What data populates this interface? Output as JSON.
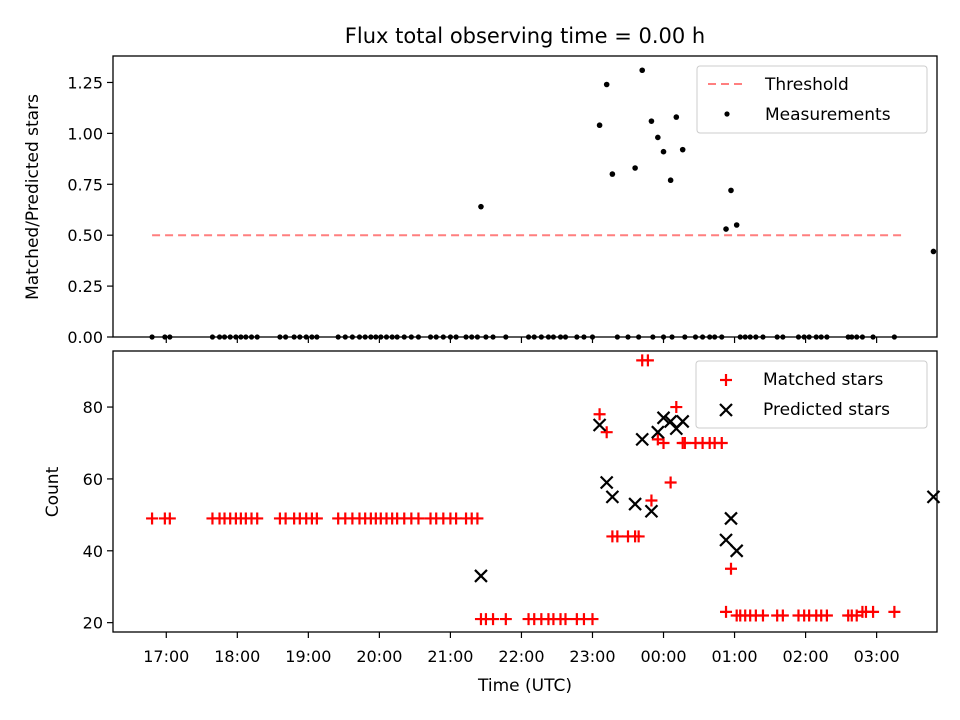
{
  "title": "Flux total observing time = 0.00 h",
  "colors": {
    "threshold": "#ff7f7f",
    "matched": "#ff0000",
    "predicted": "#000000",
    "measurements": "#000000"
  },
  "chart_data": [
    {
      "type": "scatter",
      "panel": "top",
      "ylabel": "Matched/Predicted stars",
      "ylim": [
        0,
        1.38
      ],
      "yticks": [
        0.0,
        0.25,
        0.5,
        0.75,
        1.0,
        1.25
      ],
      "ytick_labels": [
        "0.00",
        "0.25",
        "0.50",
        "0.75",
        "1.00",
        "1.25"
      ],
      "xlim": [
        16.25,
        27.85
      ],
      "legend": {
        "position": "top-right",
        "threshold_label": "Threshold",
        "measurements_label": "Measurements"
      },
      "threshold": {
        "x": [
          16.8,
          27.35
        ],
        "y": 0.5
      },
      "measurements": {
        "x": [
          21.43,
          23.1,
          23.2,
          23.28,
          23.6,
          23.7,
          23.83,
          23.92,
          24.0,
          24.1,
          24.18,
          24.27,
          24.88,
          24.95,
          25.03,
          27.8
        ],
        "y": [
          0.64,
          1.04,
          1.24,
          0.8,
          0.83,
          1.31,
          1.06,
          0.98,
          0.91,
          0.77,
          1.08,
          0.92,
          0.53,
          0.72,
          0.55,
          0.42
        ]
      },
      "zeros_x": [
        16.8,
        16.98,
        17.05,
        17.65,
        17.75,
        17.82,
        17.9,
        17.98,
        18.05,
        18.12,
        18.2,
        18.28,
        18.6,
        18.68,
        18.8,
        18.88,
        18.97,
        19.05,
        19.12,
        19.42,
        19.52,
        19.62,
        19.72,
        19.8,
        19.88,
        19.95,
        20.02,
        20.1,
        20.18,
        20.25,
        20.35,
        20.45,
        20.55,
        20.72,
        20.8,
        20.9,
        21.0,
        21.08,
        21.22,
        21.3,
        21.38,
        21.5,
        21.6,
        21.78,
        22.1,
        22.18,
        22.28,
        22.38,
        22.45,
        22.55,
        22.62,
        22.78,
        22.88,
        23.0,
        23.35,
        23.5,
        23.65,
        23.85,
        24.0,
        24.12,
        24.3,
        24.45,
        24.55,
        24.65,
        24.72,
        24.82,
        25.08,
        25.15,
        25.22,
        25.3,
        25.4,
        25.6,
        25.68,
        25.9,
        25.98,
        26.05,
        26.15,
        26.22,
        26.3,
        26.6,
        26.65,
        26.72,
        26.8,
        26.95,
        27.25
      ]
    },
    {
      "type": "scatter",
      "panel": "bottom",
      "ylabel": "Count",
      "xlabel": "Time (UTC)",
      "ylim": [
        17.4,
        95.6
      ],
      "yticks": [
        20,
        40,
        60,
        80
      ],
      "ytick_labels": [
        "20",
        "40",
        "60",
        "80"
      ],
      "xlim": [
        16.25,
        27.85
      ],
      "xticks": [
        17,
        18,
        19,
        20,
        21,
        22,
        23,
        24,
        25,
        26,
        27
      ],
      "xtick_labels": [
        "17:00",
        "18:00",
        "19:00",
        "20:00",
        "21:00",
        "22:00",
        "23:00",
        "00:00",
        "01:00",
        "02:00",
        "03:00"
      ],
      "legend": {
        "position": "top-right",
        "matched_label": "Matched stars",
        "predicted_label": "Predicted stars"
      },
      "series": [
        {
          "name": "Matched stars",
          "points": [
            [
              16.8,
              49
            ],
            [
              16.98,
              49
            ],
            [
              17.05,
              49
            ],
            [
              17.65,
              49
            ],
            [
              17.75,
              49
            ],
            [
              17.82,
              49
            ],
            [
              17.9,
              49
            ],
            [
              17.98,
              49
            ],
            [
              18.05,
              49
            ],
            [
              18.12,
              49
            ],
            [
              18.2,
              49
            ],
            [
              18.28,
              49
            ],
            [
              18.6,
              49
            ],
            [
              18.68,
              49
            ],
            [
              18.8,
              49
            ],
            [
              18.88,
              49
            ],
            [
              18.97,
              49
            ],
            [
              19.05,
              49
            ],
            [
              19.12,
              49
            ],
            [
              19.42,
              49
            ],
            [
              19.52,
              49
            ],
            [
              19.62,
              49
            ],
            [
              19.72,
              49
            ],
            [
              19.8,
              49
            ],
            [
              19.88,
              49
            ],
            [
              19.95,
              49
            ],
            [
              20.02,
              49
            ],
            [
              20.1,
              49
            ],
            [
              20.18,
              49
            ],
            [
              20.25,
              49
            ],
            [
              20.35,
              49
            ],
            [
              20.45,
              49
            ],
            [
              20.55,
              49
            ],
            [
              20.72,
              49
            ],
            [
              20.8,
              49
            ],
            [
              20.9,
              49
            ],
            [
              21.0,
              49
            ],
            [
              21.08,
              49
            ],
            [
              21.22,
              49
            ],
            [
              21.3,
              49
            ],
            [
              21.38,
              49
            ],
            [
              21.43,
              21
            ],
            [
              21.5,
              21
            ],
            [
              21.6,
              21
            ],
            [
              21.78,
              21
            ],
            [
              22.1,
              21
            ],
            [
              22.18,
              21
            ],
            [
              22.28,
              21
            ],
            [
              22.38,
              21
            ],
            [
              22.45,
              21
            ],
            [
              22.55,
              21
            ],
            [
              22.62,
              21
            ],
            [
              22.78,
              21
            ],
            [
              22.88,
              21
            ],
            [
              23.0,
              21
            ],
            [
              23.1,
              78
            ],
            [
              23.2,
              73
            ],
            [
              23.28,
              44
            ],
            [
              23.35,
              44
            ],
            [
              23.5,
              44
            ],
            [
              23.6,
              44
            ],
            [
              23.65,
              44
            ],
            [
              23.7,
              93
            ],
            [
              23.78,
              93
            ],
            [
              23.83,
              54
            ],
            [
              23.92,
              71
            ],
            [
              24.0,
              70
            ],
            [
              24.1,
              59
            ],
            [
              24.18,
              80
            ],
            [
              24.27,
              70
            ],
            [
              24.3,
              70
            ],
            [
              24.45,
              70
            ],
            [
              24.55,
              70
            ],
            [
              24.65,
              70
            ],
            [
              24.72,
              70
            ],
            [
              24.82,
              70
            ],
            [
              24.88,
              23
            ],
            [
              24.95,
              35
            ],
            [
              25.03,
              22
            ],
            [
              25.08,
              22
            ],
            [
              25.15,
              22
            ],
            [
              25.22,
              22
            ],
            [
              25.3,
              22
            ],
            [
              25.4,
              22
            ],
            [
              25.6,
              22
            ],
            [
              25.68,
              22
            ],
            [
              25.9,
              22
            ],
            [
              25.98,
              22
            ],
            [
              26.05,
              22
            ],
            [
              26.15,
              22
            ],
            [
              26.22,
              22
            ],
            [
              26.3,
              22
            ],
            [
              26.6,
              22
            ],
            [
              26.65,
              22
            ],
            [
              26.72,
              22
            ],
            [
              26.8,
              23
            ],
            [
              26.85,
              23
            ],
            [
              26.95,
              23
            ],
            [
              27.25,
              23
            ]
          ]
        },
        {
          "name": "Predicted stars",
          "points": [
            [
              21.43,
              33
            ],
            [
              23.1,
              75
            ],
            [
              23.2,
              59
            ],
            [
              23.28,
              55
            ],
            [
              23.6,
              53
            ],
            [
              23.7,
              71
            ],
            [
              23.83,
              51
            ],
            [
              23.92,
              73
            ],
            [
              24.0,
              77
            ],
            [
              24.1,
              76
            ],
            [
              24.18,
              74
            ],
            [
              24.27,
              76
            ],
            [
              24.88,
              43
            ],
            [
              24.95,
              49
            ],
            [
              25.03,
              40
            ],
            [
              27.8,
              55
            ]
          ]
        }
      ]
    }
  ]
}
